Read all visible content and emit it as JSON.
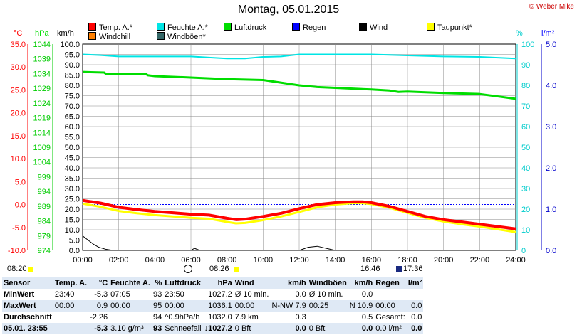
{
  "title": "Montag, 05.01.2015",
  "credit": "© Weber Mike",
  "axis_headers": {
    "temp": "°C",
    "pressure": "hPa",
    "wind": "km/h",
    "humidity": "%",
    "rain": "l/m²"
  },
  "legend": [
    {
      "label": "Temp. A.*",
      "color": "#ff0000"
    },
    {
      "label": "Feuchte A.*",
      "color": "#00e5e5"
    },
    {
      "label": "Luftdruck",
      "color": "#00dd00"
    },
    {
      "label": "Regen",
      "color": "#0000ff"
    },
    {
      "label": "Wind",
      "color": "#000000"
    },
    {
      "label": "Taupunkt*",
      "color": "#ffff00"
    },
    {
      "label": "Windchill",
      "color": "#ff8000"
    },
    {
      "label": "Windböen*",
      "color": "#336666"
    }
  ],
  "time_markers": {
    "sunrise": "08:20",
    "moon_a": "08:26",
    "moon_b": "16:46",
    "sunset": "17:36"
  },
  "chart_data": {
    "type": "line",
    "title": "Montag, 05.01.2015",
    "x_ticks": [
      "00:00",
      "02:00",
      "04:00",
      "06:00",
      "08:00",
      "10:00",
      "12:00",
      "14:00",
      "16:00",
      "18:00",
      "20:00",
      "22:00",
      "24:00"
    ],
    "xlim": [
      0,
      24
    ],
    "axes": {
      "temp": {
        "unit": "°C",
        "lim": [
          -10,
          35
        ],
        "ticks": [
          "35.0",
          "30.0",
          "25.0",
          "20.0",
          "15.0",
          "10.0",
          "5.0",
          "0.0",
          "-5.0",
          "-10.0"
        ]
      },
      "pressure": {
        "unit": "hPa",
        "lim": [
          974,
          1046
        ],
        "ticks": [
          "1044",
          "1039",
          "1034",
          "1029",
          "1024",
          "1019",
          "1014",
          "1009",
          "1004",
          "999",
          "994",
          "989",
          "984",
          "979",
          "974"
        ]
      },
      "wind": {
        "unit": "km/h",
        "lim": [
          0,
          100
        ],
        "ticks": [
          "100.0",
          "95.0",
          "90.0",
          "85.0",
          "80.0",
          "75.0",
          "70.0",
          "65.0",
          "60.0",
          "55.0",
          "50.0",
          "45.0",
          "40.0",
          "35.0",
          "30.0",
          "25.0",
          "20.0",
          "15.0",
          "10.0",
          "5.0",
          "0.0"
        ]
      },
      "humidity": {
        "unit": "%",
        "lim": [
          0,
          100
        ],
        "ticks": [
          "100",
          "90",
          "80",
          "70",
          "60",
          "50",
          "40",
          "30",
          "20",
          "10",
          "0"
        ]
      },
      "rain": {
        "unit": "l/m²",
        "lim": [
          0,
          5
        ],
        "ticks": [
          "5.0",
          "4.0",
          "3.0",
          "2.0",
          "1.0",
          "0.0"
        ]
      }
    },
    "series": [
      {
        "name": "Luftdruck",
        "axis": "wind",
        "color": "#00dd00",
        "x": [
          0,
          1.2,
          1.3,
          3.5,
          3.6,
          4,
          6,
          8,
          10,
          12,
          13,
          14,
          16,
          17,
          17.5,
          18,
          20,
          22,
          24
        ],
        "values": [
          86.5,
          86.2,
          85.5,
          85.7,
          84.9,
          84.5,
          83.8,
          83,
          82.6,
          80,
          79.2,
          78.8,
          78,
          77.5,
          76.8,
          77,
          76.3,
          75.8,
          73.5
        ]
      },
      {
        "name": "Feuchte A.*",
        "axis": "humidity",
        "color": "#00e5e5",
        "x": [
          0,
          1,
          2,
          4,
          6,
          7,
          8,
          9,
          10,
          11,
          12,
          14,
          16,
          18,
          20,
          22,
          24
        ],
        "values": [
          95,
          94.6,
          94,
          94,
          94,
          93.5,
          93,
          93,
          93.8,
          94,
          95,
          95,
          95,
          94.5,
          94,
          93.8,
          93
        ]
      },
      {
        "name": "Temp. A.*",
        "axis": "temp",
        "color": "#ff0000",
        "x": [
          0,
          1,
          2,
          3,
          4,
          5,
          6,
          7,
          8,
          8.5,
          9,
          10,
          11,
          12,
          13,
          14,
          15,
          15.5,
          16,
          17,
          18,
          19,
          20,
          21,
          22,
          23,
          24
        ],
        "values": [
          0.9,
          0.3,
          -0.6,
          -1.1,
          -1.5,
          -1.8,
          -2.1,
          -2.3,
          -3.0,
          -3.3,
          -3.2,
          -2.6,
          -1.9,
          -0.9,
          0.0,
          0.4,
          0.6,
          0.6,
          0.4,
          -0.4,
          -1.5,
          -2.6,
          -3.3,
          -3.8,
          -4.3,
          -4.8,
          -5.3
        ]
      },
      {
        "name": "Taupunkt*",
        "axis": "temp",
        "color": "#ffff00",
        "x": [
          0,
          1,
          2,
          3,
          4,
          5,
          6,
          7,
          8,
          8.5,
          9,
          10,
          11,
          12,
          13,
          14,
          15,
          15.5,
          16,
          17,
          18,
          19,
          20,
          21,
          22,
          23,
          24
        ],
        "values": [
          0.2,
          -0.5,
          -1.4,
          -1.9,
          -2.3,
          -2.6,
          -2.9,
          -3.1,
          -3.8,
          -4.1,
          -4.0,
          -3.4,
          -2.6,
          -1.6,
          -0.6,
          0.0,
          0.3,
          0.3,
          0.1,
          -0.7,
          -1.8,
          -2.9,
          -3.7,
          -4.3,
          -4.8,
          -5.4,
          -6.0
        ]
      },
      {
        "name": "Wind",
        "axis": "wind",
        "color": "#000000",
        "x": [
          0,
          0.3,
          0.6,
          0.9,
          1.3,
          1.7,
          2,
          3,
          4,
          5,
          6,
          6.2,
          6.5,
          7,
          8,
          9,
          10,
          11,
          12,
          12.5,
          13,
          13.5,
          14,
          16,
          18,
          20,
          22,
          24
        ],
        "values": [
          7,
          5,
          3,
          1.5,
          0.5,
          0,
          0,
          0,
          0,
          0,
          0,
          1,
          0,
          0,
          0,
          0,
          0,
          0,
          0,
          1.5,
          2,
          1,
          0,
          0,
          0,
          0,
          0,
          0
        ]
      }
    ],
    "reference_lines": [
      {
        "axis": "temp",
        "value": 0,
        "color": "#0000ff",
        "style": "dotted"
      }
    ]
  },
  "stats": {
    "header": [
      "Sensor",
      "Temp. A.",
      "°C",
      "Feuchte A.",
      "%",
      "Luftdruck",
      "hPa",
      "Wind",
      "km/h",
      "Windböen",
      "km/h",
      "Regen",
      "l/m²"
    ],
    "rows": [
      {
        "label": "MinWert",
        "cells": [
          "23:40",
          "-5.3",
          "07:05",
          "93",
          "23:50",
          "1027.2",
          "Ø 10 min.",
          "0.0",
          "Ø 10 min.",
          "0.0",
          "",
          ""
        ]
      },
      {
        "label": "MaxWert",
        "cells": [
          "00:00",
          "0.9",
          "00:00",
          "95",
          "00:00",
          "1036.1",
          "00:00",
          "N-NW 7.9",
          "00:25",
          "N 10.9",
          "00:00",
          "0.0"
        ]
      },
      {
        "label": "Durchschnitt",
        "cells": [
          "",
          "-2.26",
          "",
          "94",
          "^0.9hPa/h",
          "1032.0",
          "7.9 km",
          "0.3",
          "",
          "0.5",
          "Gesamt:",
          "0.0"
        ]
      },
      {
        "label": "05.01. 23:55",
        "cells": [
          "",
          "-5.3",
          "3.10 g/m³",
          "93",
          "Schneefall",
          "↓1027.2",
          "0 Bft",
          "0.0",
          "0 Bft",
          "0.0",
          "0.0 l/m²",
          "0.0"
        ]
      }
    ]
  }
}
